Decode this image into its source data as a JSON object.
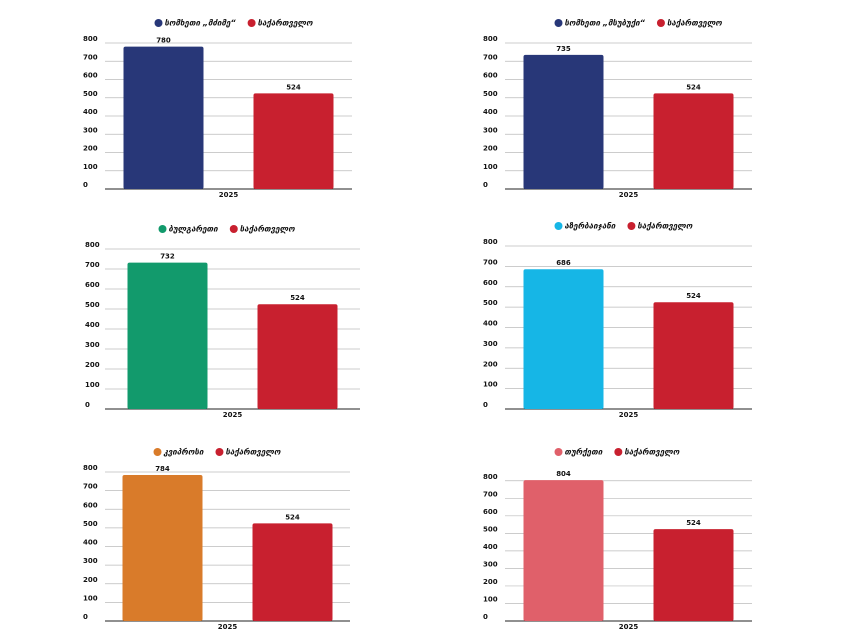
{
  "chart_data": [
    {
      "type": "bar",
      "categories": [
        "2025"
      ],
      "ylim": [
        0,
        800
      ],
      "yticks": [
        0,
        100,
        200,
        300,
        400,
        500,
        600,
        700,
        800
      ],
      "grid": true,
      "series": [
        {
          "name": "სომხეთი „მძიმე“",
          "color": "#283778",
          "values": [
            780
          ]
        },
        {
          "name": "საქართველო",
          "color": "#c8202f",
          "values": [
            524
          ]
        }
      ]
    },
    {
      "type": "bar",
      "categories": [
        "2025"
      ],
      "ylim": [
        0,
        800
      ],
      "yticks": [
        0,
        100,
        200,
        300,
        400,
        500,
        600,
        700,
        800
      ],
      "grid": true,
      "series": [
        {
          "name": "სომხეთი „მსუბუქი“",
          "color": "#283778",
          "values": [
            735
          ]
        },
        {
          "name": "საქართველო",
          "color": "#c8202f",
          "values": [
            524
          ]
        }
      ]
    },
    {
      "type": "bar",
      "categories": [
        "2025"
      ],
      "ylim": [
        0,
        800
      ],
      "yticks": [
        0,
        100,
        200,
        300,
        400,
        500,
        600,
        700,
        800
      ],
      "grid": true,
      "series": [
        {
          "name": "ბულგარეთი",
          "color": "#129a6c",
          "values": [
            732
          ]
        },
        {
          "name": "საქართველო",
          "color": "#c8202f",
          "values": [
            524
          ]
        }
      ]
    },
    {
      "type": "bar",
      "categories": [
        "2025"
      ],
      "ylim": [
        0,
        800
      ],
      "yticks": [
        0,
        100,
        200,
        300,
        400,
        500,
        600,
        700,
        800
      ],
      "grid": true,
      "series": [
        {
          "name": "აზერბაიჯანი",
          "color": "#16b6e6",
          "values": [
            686
          ]
        },
        {
          "name": "საქართველო",
          "color": "#c8202f",
          "values": [
            524
          ]
        }
      ]
    },
    {
      "type": "bar",
      "categories": [
        "2025"
      ],
      "ylim": [
        0,
        800
      ],
      "yticks": [
        0,
        100,
        200,
        300,
        400,
        500,
        600,
        700,
        800
      ],
      "grid": true,
      "series": [
        {
          "name": "კვიპროსი",
          "color": "#d97b2a",
          "values": [
            784
          ]
        },
        {
          "name": "საქართველო",
          "color": "#c8202f",
          "values": [
            524
          ]
        }
      ]
    },
    {
      "type": "bar",
      "categories": [
        "2025"
      ],
      "ylim": [
        0,
        850
      ],
      "yticks": [
        0,
        100,
        200,
        300,
        400,
        500,
        600,
        700,
        800
      ],
      "grid": true,
      "series": [
        {
          "name": "თურქეთი",
          "color": "#e0606a",
          "values": [
            804
          ]
        },
        {
          "name": "საქართველო",
          "color": "#c8202f",
          "values": [
            524
          ]
        }
      ]
    }
  ]
}
